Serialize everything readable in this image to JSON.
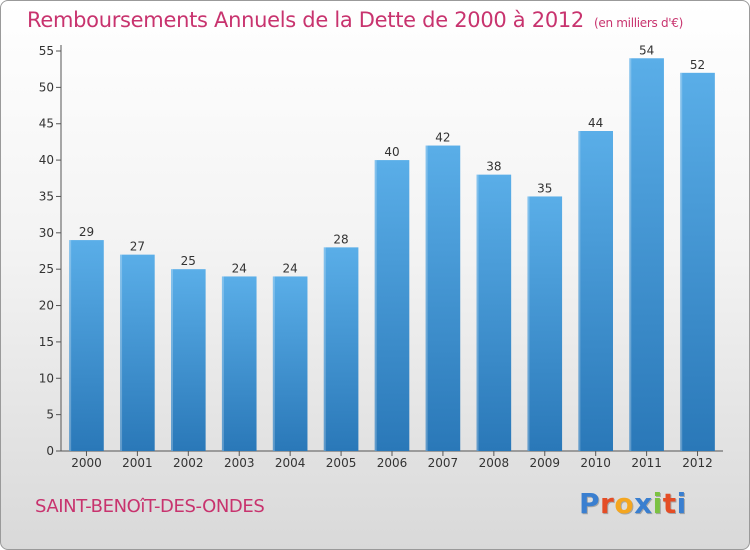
{
  "title": "Remboursements Annuels de la Dette de 2000 à 2012",
  "unit": "(en milliers d'€)",
  "commune": "SAINT-BENOîT-DES-ONDES",
  "logo": {
    "letters": [
      "P",
      "r",
      "o",
      "x",
      "i",
      "t",
      "i"
    ],
    "colors": [
      "#3a7fd0",
      "#e44d26",
      "#f4a620",
      "#3a7fd0",
      "#7cc242",
      "#e44d26",
      "#3a7fd0"
    ]
  },
  "colors": {
    "accent": "#c8336e",
    "bar_top": "#5aaee8",
    "bar_bottom": "#2a78b8"
  },
  "chart_data": {
    "type": "bar",
    "categories": [
      "2000",
      "2001",
      "2002",
      "2003",
      "2004",
      "2005",
      "2006",
      "2007",
      "2008",
      "2009",
      "2010",
      "2011",
      "2012"
    ],
    "values": [
      29,
      27,
      25,
      24,
      24,
      28,
      40,
      42,
      38,
      35,
      44,
      54,
      52
    ],
    "yticks": [
      0,
      5,
      10,
      15,
      20,
      25,
      30,
      35,
      40,
      45,
      50,
      55
    ],
    "ylim": [
      0,
      55
    ],
    "grid": false
  }
}
